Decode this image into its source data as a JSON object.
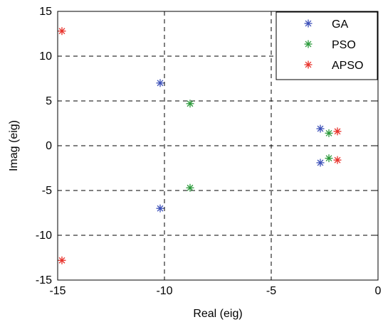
{
  "chart_data": {
    "type": "scatter",
    "xlabel": "Real (eig)",
    "ylabel": "Imag (eig)",
    "xlim": [
      -15,
      0
    ],
    "ylim": [
      -15,
      15
    ],
    "xticks": [
      -15,
      -10,
      -5,
      0
    ],
    "yticks": [
      -15,
      -10,
      -5,
      0,
      5,
      10,
      15
    ],
    "xtick_labels": [
      "-15",
      "-10",
      "-5",
      "0"
    ],
    "ytick_labels": [
      "-15",
      "-10",
      "-5",
      "0",
      "5",
      "10",
      "15"
    ],
    "grid": true,
    "marker": "asterisk",
    "legend_position": "top-right",
    "series": [
      {
        "name": "GA",
        "color": "#3b4fb8",
        "points": [
          [
            -10.2,
            7.0
          ],
          [
            -10.2,
            -7.0
          ],
          [
            -2.7,
            1.9
          ],
          [
            -2.7,
            -1.9
          ]
        ]
      },
      {
        "name": "PSO",
        "color": "#2a9a3a",
        "points": [
          [
            -8.8,
            4.7
          ],
          [
            -8.8,
            -4.7
          ],
          [
            -2.3,
            1.4
          ],
          [
            -2.3,
            -1.4
          ]
        ]
      },
      {
        "name": "APSO",
        "color": "#e8312a",
        "points": [
          [
            -14.8,
            12.8
          ],
          [
            -14.8,
            -12.8
          ],
          [
            -1.9,
            1.6
          ],
          [
            -1.9,
            -1.6
          ]
        ]
      }
    ]
  }
}
